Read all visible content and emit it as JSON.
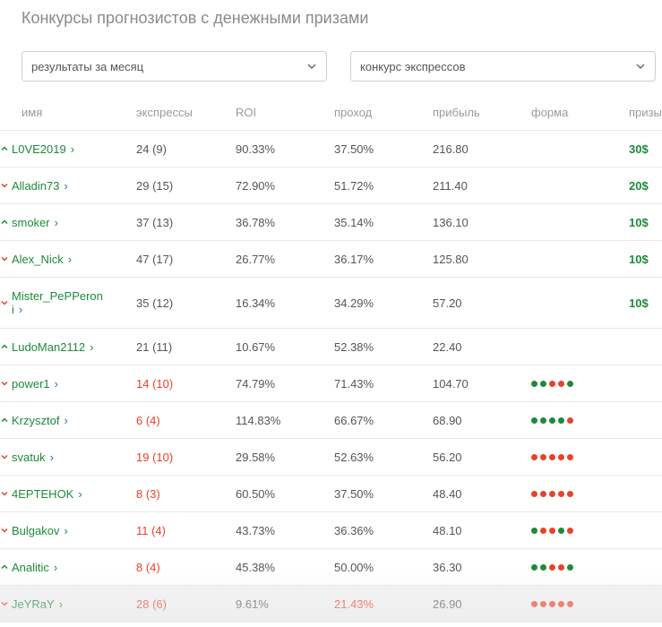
{
  "page_title": "Конкурсы прогнозистов с денежными призами",
  "filters": {
    "period": "результаты за месяц",
    "contest": "конкурс экспрессов"
  },
  "columns": {
    "name": "имя",
    "express": "экспрессы",
    "roi": "ROI",
    "pass": "проход",
    "profit": "прибыль",
    "form": "форма",
    "prize": "призы"
  },
  "colors": {
    "green": "#1d8a3a",
    "red": "#e8412c"
  },
  "rows": [
    {
      "trend": "up",
      "name": "L0VE2019",
      "express": "24 (9)",
      "express_red": false,
      "roi": "90.33%",
      "pass": "37.50%",
      "pass_red": false,
      "profit": "216.80",
      "form": "",
      "prize": "30$"
    },
    {
      "trend": "down",
      "name": "Alladin73",
      "express": "29 (15)",
      "express_red": false,
      "roi": "72.90%",
      "pass": "51.72%",
      "pass_red": false,
      "profit": "211.40",
      "form": "",
      "prize": "20$"
    },
    {
      "trend": "up",
      "name": "smoker",
      "express": "37 (13)",
      "express_red": false,
      "roi": "36.78%",
      "pass": "35.14%",
      "pass_red": false,
      "profit": "136.10",
      "form": "",
      "prize": "10$"
    },
    {
      "trend": "down",
      "name": "Alex_Nick",
      "express": "47 (17)",
      "express_red": false,
      "roi": "26.77%",
      "pass": "36.17%",
      "pass_red": false,
      "profit": "125.80",
      "form": "",
      "prize": "10$"
    },
    {
      "trend": "down",
      "name": "Mister_PePPeroni",
      "express": "35 (12)",
      "express_red": false,
      "roi": "16.34%",
      "pass": "34.29%",
      "pass_red": false,
      "profit": "57.20",
      "form": "",
      "prize": "10$",
      "tall": true
    },
    {
      "trend": "up",
      "name": "LudoMan2112",
      "express": "21 (11)",
      "express_red": false,
      "roi": "10.67%",
      "pass": "52.38%",
      "pass_red": false,
      "profit": "22.40",
      "form": "",
      "prize": ""
    },
    {
      "trend": "down",
      "name": "power1",
      "express": "14 (10)",
      "express_red": true,
      "roi": "74.79%",
      "pass": "71.43%",
      "pass_red": false,
      "profit": "104.70",
      "form": "ggrrg",
      "prize": ""
    },
    {
      "trend": "up",
      "name": "Krzysztof",
      "express": "6 (4)",
      "express_red": true,
      "roi": "114.83%",
      "pass": "66.67%",
      "pass_red": false,
      "profit": "68.90",
      "form": "ggggr",
      "prize": ""
    },
    {
      "trend": "down",
      "name": "svatuk",
      "express": "19 (10)",
      "express_red": true,
      "roi": "29.58%",
      "pass": "52.63%",
      "pass_red": false,
      "profit": "56.20",
      "form": "rrrrr",
      "prize": ""
    },
    {
      "trend": "down",
      "name": "4EPTEHOK",
      "express": "8 (3)",
      "express_red": true,
      "roi": "60.50%",
      "pass": "37.50%",
      "pass_red": false,
      "profit": "48.40",
      "form": "rrrrr",
      "prize": ""
    },
    {
      "trend": "down",
      "name": "Bulgakov",
      "express": "11 (4)",
      "express_red": true,
      "roi": "43.73%",
      "pass": "36.36%",
      "pass_red": false,
      "profit": "48.10",
      "form": "grrgr",
      "prize": ""
    },
    {
      "trend": "up",
      "name": "Analitic",
      "express": "8 (4)",
      "express_red": true,
      "roi": "45.38%",
      "pass": "50.00%",
      "pass_red": false,
      "profit": "36.30",
      "form": "ggrrg",
      "prize": ""
    },
    {
      "trend": "down",
      "name": "JeYRaY",
      "express": "28 (6)",
      "express_red": true,
      "roi": "9.61%",
      "pass": "21.43%",
      "pass_red": true,
      "profit": "26.90",
      "form": "rrrrr",
      "prize": "",
      "shaded": true
    }
  ]
}
